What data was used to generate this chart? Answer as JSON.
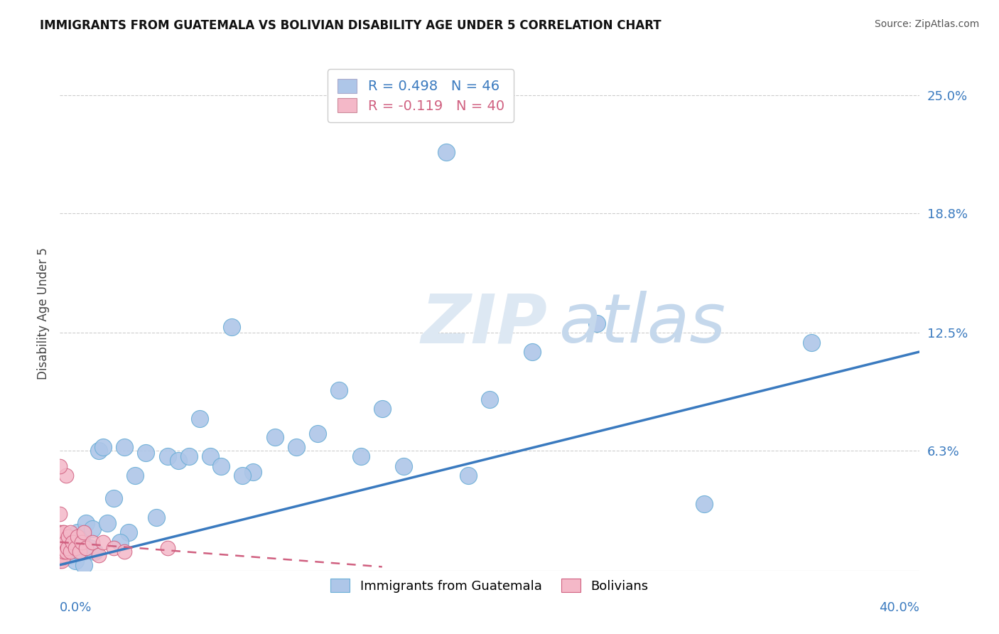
{
  "title": "IMMIGRANTS FROM GUATEMALA VS BOLIVIAN DISABILITY AGE UNDER 5 CORRELATION CHART",
  "source": "Source: ZipAtlas.com",
  "ylabel": "Disability Age Under 5",
  "xlim": [
    0.0,
    40.0
  ],
  "ylim": [
    0.0,
    27.0
  ],
  "r_guatemala": 0.498,
  "n_guatemala": 46,
  "r_bolivian": -0.119,
  "n_bolivian": 40,
  "guatemala_color": "#aec6e8",
  "guatemala_edge": "#6aaed6",
  "bolivian_color": "#f4b8c8",
  "bolivian_edge": "#d06080",
  "blue_line_color": "#3a7abf",
  "pink_line_color": "#d06080",
  "legend_label_1": "Immigrants from Guatemala",
  "legend_label_2": "Bolivians",
  "ytick_vals": [
    0.0,
    6.3,
    12.5,
    18.8,
    25.0
  ],
  "ytick_labels": [
    "",
    "6.3%",
    "12.5%",
    "18.8%",
    "25.0%"
  ],
  "blue_line_x": [
    0.0,
    40.0
  ],
  "blue_line_y": [
    0.3,
    11.5
  ],
  "pink_line_x": [
    0.0,
    15.0
  ],
  "pink_line_y": [
    1.5,
    0.2
  ],
  "guatemala_x": [
    0.3,
    0.5,
    0.6,
    0.7,
    0.8,
    0.9,
    1.0,
    1.1,
    1.2,
    1.4,
    1.5,
    1.6,
    1.8,
    2.0,
    2.2,
    2.5,
    3.0,
    3.5,
    4.0,
    4.5,
    5.0,
    5.5,
    6.0,
    7.0,
    8.0,
    9.0,
    10.0,
    11.0,
    12.0,
    13.0,
    14.0,
    15.0,
    16.0,
    18.0,
    20.0,
    25.0,
    30.0,
    35.0,
    6.5,
    7.5,
    3.2,
    2.8,
    0.4,
    22.0,
    8.5,
    19.0
  ],
  "guatemala_y": [
    1.5,
    0.8,
    1.2,
    0.5,
    2.0,
    1.0,
    1.8,
    0.3,
    2.5,
    1.2,
    2.2,
    1.0,
    6.3,
    6.5,
    2.5,
    3.8,
    6.5,
    5.0,
    6.2,
    2.8,
    6.0,
    5.8,
    6.0,
    6.0,
    12.8,
    5.2,
    7.0,
    6.5,
    7.2,
    9.5,
    6.0,
    8.5,
    5.5,
    22.0,
    9.0,
    13.0,
    3.5,
    12.0,
    8.0,
    5.5,
    2.0,
    1.5,
    1.2,
    11.5,
    5.0,
    5.0
  ],
  "bolivian_x": [
    0.0,
    0.0,
    0.0,
    0.0,
    0.0,
    0.05,
    0.05,
    0.05,
    0.08,
    0.08,
    0.1,
    0.1,
    0.12,
    0.12,
    0.15,
    0.15,
    0.18,
    0.2,
    0.2,
    0.25,
    0.3,
    0.3,
    0.35,
    0.4,
    0.5,
    0.5,
    0.6,
    0.7,
    0.8,
    0.9,
    1.0,
    1.1,
    1.2,
    1.5,
    1.8,
    2.0,
    2.5,
    3.0,
    5.0,
    0.0
  ],
  "bolivian_y": [
    0.5,
    1.0,
    1.5,
    2.0,
    3.0,
    0.8,
    1.2,
    1.8,
    0.5,
    1.0,
    0.8,
    1.5,
    1.0,
    2.0,
    1.5,
    0.7,
    1.2,
    1.0,
    2.0,
    1.5,
    1.0,
    5.0,
    1.2,
    1.8,
    1.0,
    2.0,
    1.5,
    1.2,
    1.8,
    1.0,
    1.5,
    2.0,
    1.2,
    1.5,
    0.8,
    1.5,
    1.2,
    1.0,
    1.2,
    5.5
  ]
}
